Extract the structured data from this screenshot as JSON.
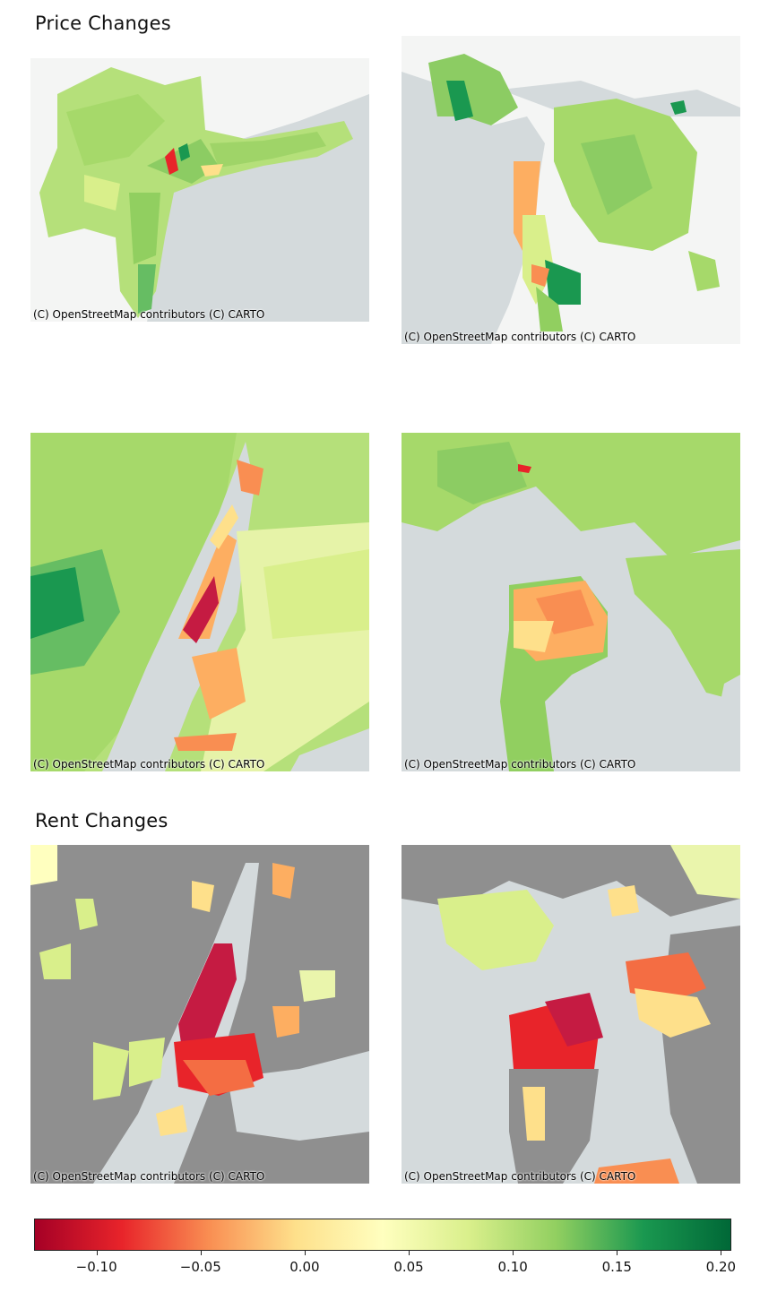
{
  "titles": {
    "price": "Price Changes",
    "rent": "Rent Changes"
  },
  "attribution": "(C) OpenStreetMap contributors (C) CARTO",
  "maps": [
    {
      "id": "p1",
      "region": "New York metro",
      "variable": "price",
      "zoom": "regional"
    },
    {
      "id": "p2",
      "region": "San Francisco Bay Area",
      "variable": "price",
      "zoom": "regional"
    },
    {
      "id": "p3",
      "region": "New York City",
      "variable": "price",
      "zoom": "city"
    },
    {
      "id": "p4",
      "region": "San Francisco",
      "variable": "price",
      "zoom": "city"
    },
    {
      "id": "p5",
      "region": "New York City",
      "variable": "rent",
      "zoom": "city"
    },
    {
      "id": "p6",
      "region": "San Francisco",
      "variable": "rent",
      "zoom": "city"
    }
  ],
  "colorbar": {
    "colormap": "RdYlGn",
    "range": [
      -0.13,
      0.205
    ],
    "ticks": [
      {
        "value": -0.1,
        "label": "−0.10"
      },
      {
        "value": -0.05,
        "label": "−0.05"
      },
      {
        "value": 0.0,
        "label": "0.00"
      },
      {
        "value": 0.05,
        "label": "0.05"
      },
      {
        "value": 0.1,
        "label": "0.10"
      },
      {
        "value": 0.15,
        "label": "0.15"
      },
      {
        "value": 0.2,
        "label": "0.20"
      }
    ],
    "stops": [
      "#a50026",
      "#e8242a",
      "#f98e52",
      "#fee08b",
      "#ffffbf",
      "#d9ef8b",
      "#91cf60",
      "#1a9850",
      "#006837"
    ]
  },
  "colors": {
    "water": "#d4dadc",
    "land": "#f4f5f4",
    "no_data": "#8f8f8f",
    "strong_negative": "#c51b42",
    "negative": "#f46d43",
    "slight_negative": "#fdae61",
    "neutral": "#ffffbf",
    "slight_positive": "#d9ef8b",
    "positive": "#a6d96a",
    "strong_positive": "#1a9850"
  }
}
